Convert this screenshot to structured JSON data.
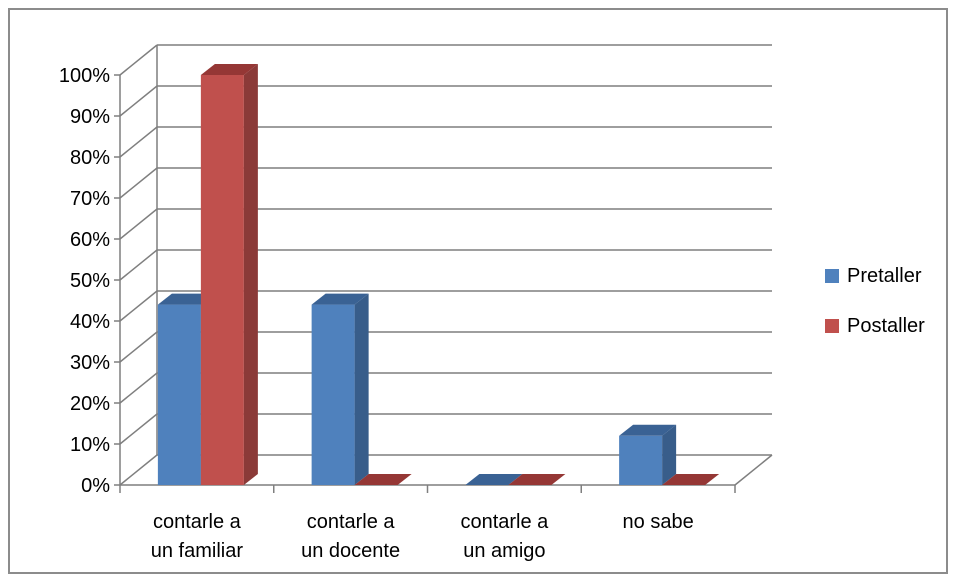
{
  "chart_data": {
    "type": "bar",
    "title": "",
    "xlabel": "",
    "ylabel": "",
    "ylim": [
      0,
      1
    ],
    "y_tick_labels": [
      "0%",
      "10%",
      "20%",
      "30%",
      "40%",
      "50%",
      "60%",
      "70%",
      "80%",
      "90%",
      "100%"
    ],
    "categories": [
      [
        "contarle a",
        "un familiar"
      ],
      [
        "contarle a",
        "un docente"
      ],
      [
        "contarle a",
        "un amigo"
      ],
      [
        "no sabe"
      ]
    ],
    "series": [
      {
        "name": "Pretaller",
        "values": [
          0.44,
          0.44,
          0.0,
          0.12
        ]
      },
      {
        "name": "Postaller",
        "values": [
          1.0,
          0.0,
          0.0,
          0.0
        ]
      }
    ],
    "grid": true,
    "legend_position": "right",
    "style": "3d-clustered-column"
  },
  "colors": {
    "Pretaller": {
      "front": "#4f81bd",
      "side": "#385d8a",
      "top": "#3a6294"
    },
    "Postaller": {
      "front": "#c0504d",
      "side": "#8b3a38",
      "top": "#953735"
    },
    "grid": "#7f7f7f",
    "axis": "#7f7f7f"
  }
}
